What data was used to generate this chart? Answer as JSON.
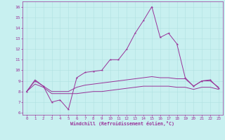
{
  "xlabel": "Windchill (Refroidissement éolien,°C)",
  "background_color": "#c8f0f0",
  "line_color": "#993399",
  "grid_color": "#b0e0e0",
  "xlim": [
    -0.5,
    23.5
  ],
  "ylim": [
    5.8,
    16.5
  ],
  "xticks": [
    0,
    1,
    2,
    3,
    4,
    5,
    6,
    7,
    8,
    9,
    10,
    11,
    12,
    13,
    14,
    15,
    16,
    17,
    18,
    19,
    20,
    21,
    22,
    23
  ],
  "yticks": [
    6,
    7,
    8,
    9,
    10,
    11,
    12,
    13,
    14,
    15,
    16
  ],
  "line1_x": [
    0,
    1,
    2,
    3,
    4,
    5,
    6,
    7,
    8,
    9,
    10,
    11,
    12,
    13,
    14,
    15,
    16,
    17,
    18,
    19,
    20,
    21,
    22,
    23
  ],
  "line1_y": [
    8.0,
    9.0,
    8.5,
    7.0,
    7.2,
    6.3,
    9.3,
    9.8,
    9.9,
    10.0,
    11.0,
    11.0,
    12.0,
    13.5,
    14.7,
    16.0,
    13.1,
    13.5,
    12.5,
    9.3,
    8.5,
    9.0,
    9.1,
    8.3
  ],
  "line2_x": [
    0,
    1,
    2,
    3,
    4,
    5,
    6,
    7,
    8,
    9,
    10,
    11,
    12,
    13,
    14,
    15,
    16,
    17,
    18,
    19,
    20,
    21,
    22,
    23
  ],
  "line2_y": [
    8.0,
    9.1,
    8.5,
    8.0,
    8.0,
    8.0,
    8.4,
    8.6,
    8.7,
    8.8,
    8.9,
    9.0,
    9.1,
    9.2,
    9.3,
    9.4,
    9.3,
    9.3,
    9.2,
    9.2,
    8.5,
    9.0,
    9.0,
    8.4
  ],
  "line3_x": [
    0,
    1,
    2,
    3,
    4,
    5,
    6,
    7,
    8,
    9,
    10,
    11,
    12,
    13,
    14,
    15,
    16,
    17,
    18,
    19,
    20,
    21,
    22,
    23
  ],
  "line3_y": [
    8.0,
    8.7,
    8.4,
    7.8,
    7.8,
    7.8,
    7.8,
    7.9,
    8.0,
    8.0,
    8.1,
    8.2,
    8.3,
    8.4,
    8.5,
    8.5,
    8.5,
    8.5,
    8.4,
    8.4,
    8.2,
    8.4,
    8.4,
    8.2
  ]
}
